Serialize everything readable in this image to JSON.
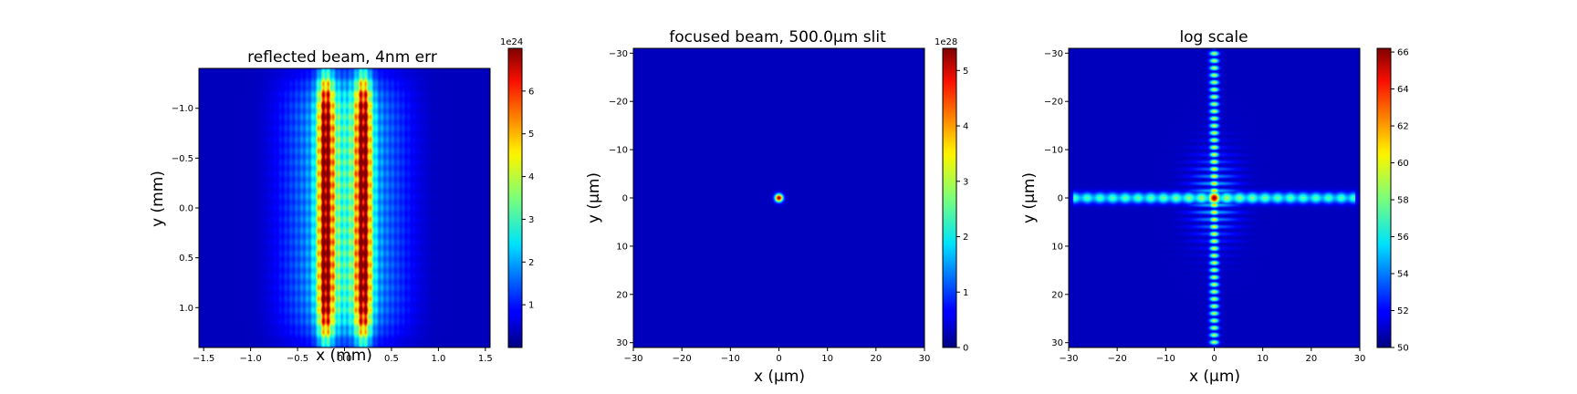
{
  "chart_data": [
    {
      "type": "heatmap",
      "title": "reflected beam, 4nm err",
      "xlabel": "x (mm)",
      "ylabel": "y (mm)",
      "xlim": [
        -1.55,
        1.55
      ],
      "ylim": [
        -1.4,
        1.4
      ],
      "y_inverted": true,
      "xticks": [
        -1.5,
        -1.0,
        -0.5,
        0.0,
        0.5,
        1.0,
        1.5
      ],
      "xtick_labels": [
        "−1.5",
        "−1.0",
        "−0.5",
        "0.0",
        "0.5",
        "1.0",
        "1.5"
      ],
      "yticks": [
        -1.0,
        -0.5,
        0.0,
        0.5,
        1.0
      ],
      "ytick_labels": [
        "−1.0",
        "−0.5",
        "0.0",
        "0.5",
        "1.0"
      ],
      "colorbar": {
        "min": 0,
        "max": 7,
        "ticks": [
          1,
          2,
          3,
          4,
          5,
          6
        ],
        "tick_labels": [
          "1",
          "2",
          "3",
          "4",
          "5",
          "6"
        ],
        "offset_label": "1e24",
        "colormap": "jet"
      },
      "pattern": {
        "kind": "double-lobe",
        "peaks_x": [
          -0.2,
          0.2
        ],
        "peak_value": 7,
        "horizontal_extent": 1.0,
        "vertical_extent": 1.35,
        "vertical_fringes": true
      }
    },
    {
      "type": "heatmap",
      "title": "focused beam, 500.0μm slit",
      "xlabel": "x (μm)",
      "ylabel": "y (μm)",
      "xlim": [
        -30,
        30
      ],
      "ylim": [
        -31,
        31
      ],
      "y_inverted": true,
      "xticks": [
        -30,
        -20,
        -10,
        0,
        10,
        20,
        30
      ],
      "xtick_labels": [
        "−30",
        "−20",
        "−10",
        "0",
        "10",
        "20",
        "30"
      ],
      "yticks": [
        -30,
        -20,
        -10,
        0,
        10,
        20,
        30
      ],
      "ytick_labels": [
        "−30",
        "−20",
        "−10",
        "0",
        "10",
        "20",
        "30"
      ],
      "colorbar": {
        "min": 0,
        "max": 5.4,
        "ticks": [
          0,
          1,
          2,
          3,
          4,
          5
        ],
        "tick_labels": [
          "0",
          "1",
          "2",
          "3",
          "4",
          "5"
        ],
        "offset_label": "1e28",
        "colormap": "jet"
      },
      "pattern": {
        "kind": "point-focus",
        "center": [
          0,
          0
        ],
        "peak_value": 5.4,
        "spot_radius": 0.8
      }
    },
    {
      "type": "heatmap",
      "title": "log scale",
      "xlabel": "x (μm)",
      "ylabel": "y (μm)",
      "xlim": [
        -30,
        30
      ],
      "ylim": [
        -31,
        31
      ],
      "y_inverted": true,
      "xticks": [
        -30,
        -20,
        -10,
        0,
        10,
        20,
        30
      ],
      "xtick_labels": [
        "−30",
        "−20",
        "−10",
        "0",
        "10",
        "20",
        "30"
      ],
      "yticks": [
        -30,
        -20,
        -10,
        0,
        10,
        20,
        30
      ],
      "ytick_labels": [
        "−30",
        "−20",
        "−10",
        "0",
        "10",
        "20",
        "30"
      ],
      "colorbar": {
        "min": 50,
        "max": 66.2,
        "ticks": [
          50,
          52,
          54,
          56,
          58,
          60,
          62,
          64,
          66
        ],
        "tick_labels": [
          "50",
          "52",
          "54",
          "56",
          "58",
          "60",
          "62",
          "64",
          "66"
        ],
        "offset_label": "",
        "colormap": "jet"
      },
      "pattern": {
        "kind": "cross-sidelobes",
        "center": [
          0,
          0
        ],
        "peak_value": 66.2,
        "floor_value": 50
      }
    }
  ]
}
